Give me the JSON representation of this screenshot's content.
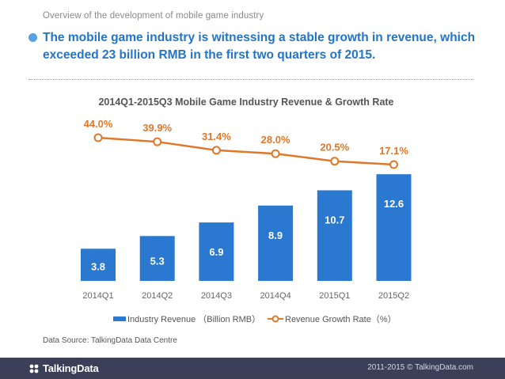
{
  "header": {
    "caption": "Overview of the development of mobile game industry",
    "headline_line1": "The mobile game industry is witnessing a stable growth in revenue, which",
    "headline_line2": "exceeded 23 billion RMB in the first two quarters of 2015."
  },
  "chart_data": {
    "type": "bar",
    "title": "2014Q1-2015Q3 Mobile Game Industry Revenue & Growth Rate",
    "categories": [
      "2014Q1",
      "2014Q2",
      "2014Q3",
      "2014Q4",
      "2015Q1",
      "2015Q2"
    ],
    "series": [
      {
        "name": "Industry Revenue （Billion RMB）",
        "type": "bar",
        "values": [
          3.8,
          5.3,
          6.9,
          8.9,
          10.7,
          12.6
        ],
        "labels": [
          "3.8",
          "5.3",
          "6.9",
          "8.9",
          "10.7",
          "12.6"
        ]
      },
      {
        "name": "Revenue Growth Rate（%）",
        "type": "line",
        "values": [
          44.0,
          39.9,
          31.4,
          28.0,
          20.5,
          17.1
        ],
        "labels": [
          "44.0%",
          "39.9%",
          "31.4%",
          "28.0%",
          "20.5%",
          "17.1%"
        ]
      }
    ],
    "legend_position": "bottom",
    "grid": false,
    "colors": {
      "bar": "#2a78d0",
      "line": "#e0782a",
      "bar_label": "#ffffff",
      "rate_label": "#e0782a",
      "axis_label": "#666666"
    }
  },
  "footer": {
    "source": "Data Source: TalkingData Data Centre",
    "logo_text": "TalkingData",
    "copyright": "2011-2015 © TalkingData.com"
  },
  "colors": {
    "headline": "#2275c6",
    "footer_bg": "#3b3f58",
    "bullet": "#58a0de"
  }
}
